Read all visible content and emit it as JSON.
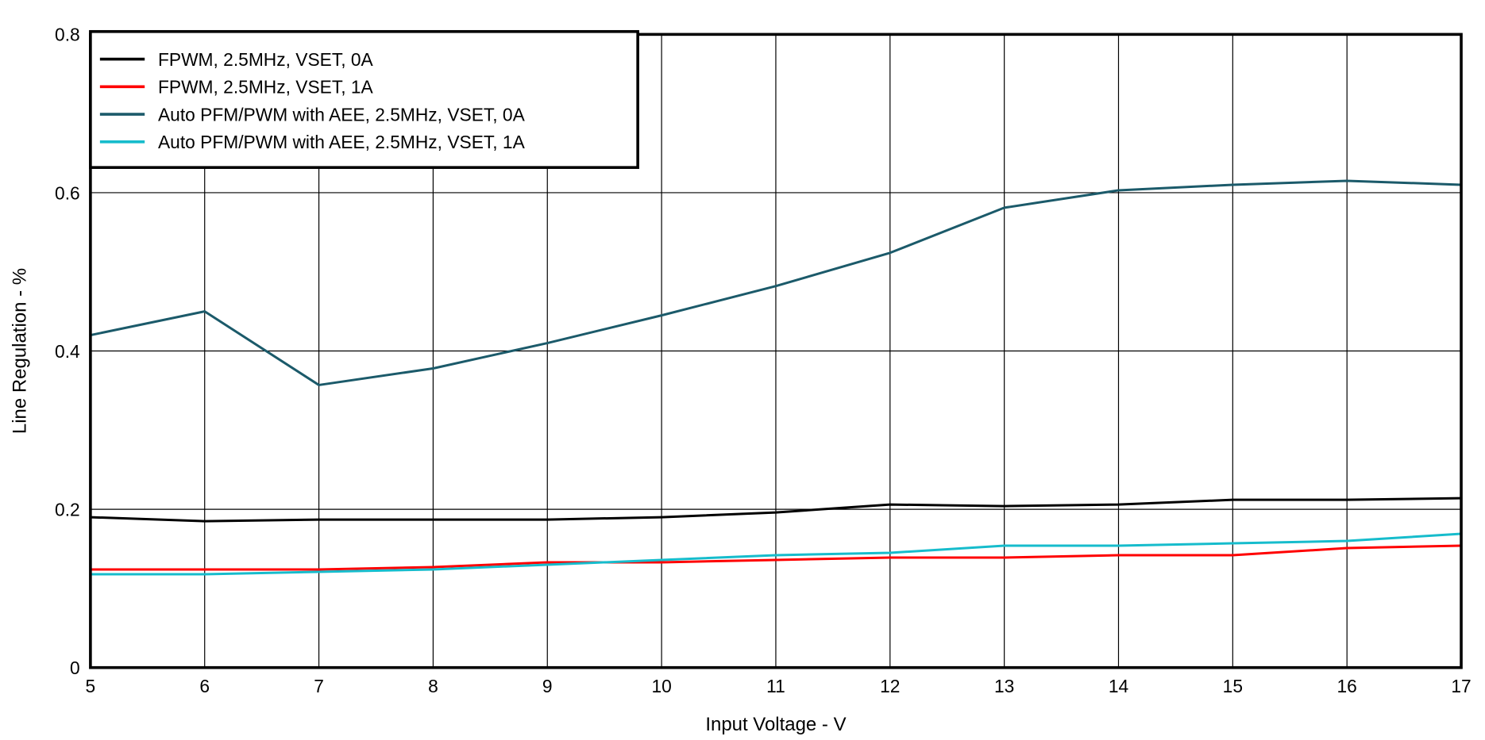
{
  "chart_data": {
    "type": "line",
    "title": "",
    "xlabel": "Input Voltage - V",
    "ylabel": "Line Regulation - %",
    "xlim": [
      5,
      17
    ],
    "ylim": [
      0,
      0.8
    ],
    "xticks": [
      "5",
      "6",
      "7",
      "8",
      "9",
      "10",
      "11",
      "12",
      "13",
      "14",
      "15",
      "16",
      "17"
    ],
    "yticks": [
      "0",
      "0.2",
      "0.4",
      "0.6",
      "0.8"
    ],
    "grid": true,
    "legend_position": "top-left",
    "x": [
      5,
      6,
      7,
      8,
      9,
      10,
      11,
      12,
      13,
      14,
      15,
      16,
      17
    ],
    "series": [
      {
        "name": "FPWM, 2.5MHz, VSET, 0A",
        "color": "#000000",
        "values": [
          0.19,
          0.185,
          0.187,
          0.187,
          0.187,
          0.19,
          0.196,
          0.206,
          0.204,
          0.206,
          0.212,
          0.212,
          0.214
        ]
      },
      {
        "name": "FPWM, 2.5MHz, VSET, 1A",
        "color": "#ff0000",
        "values": [
          0.124,
          0.124,
          0.124,
          0.127,
          0.133,
          0.133,
          0.136,
          0.139,
          0.139,
          0.142,
          0.142,
          0.151,
          0.154
        ]
      },
      {
        "name": "Auto PFM/PWM with AEE, 2.5MHz, VSET, 0A",
        "color": "#1b5a6a",
        "values": [
          0.42,
          0.45,
          0.357,
          0.378,
          0.41,
          0.445,
          0.482,
          0.524,
          0.581,
          0.603,
          0.61,
          0.615,
          0.61
        ]
      },
      {
        "name": "Auto PFM/PWM with AEE, 2.5MHz, VSET, 1A",
        "color": "#16bccc",
        "values": [
          0.118,
          0.118,
          0.121,
          0.124,
          0.13,
          0.136,
          0.142,
          0.145,
          0.154,
          0.154,
          0.157,
          0.16,
          0.169
        ]
      }
    ]
  }
}
